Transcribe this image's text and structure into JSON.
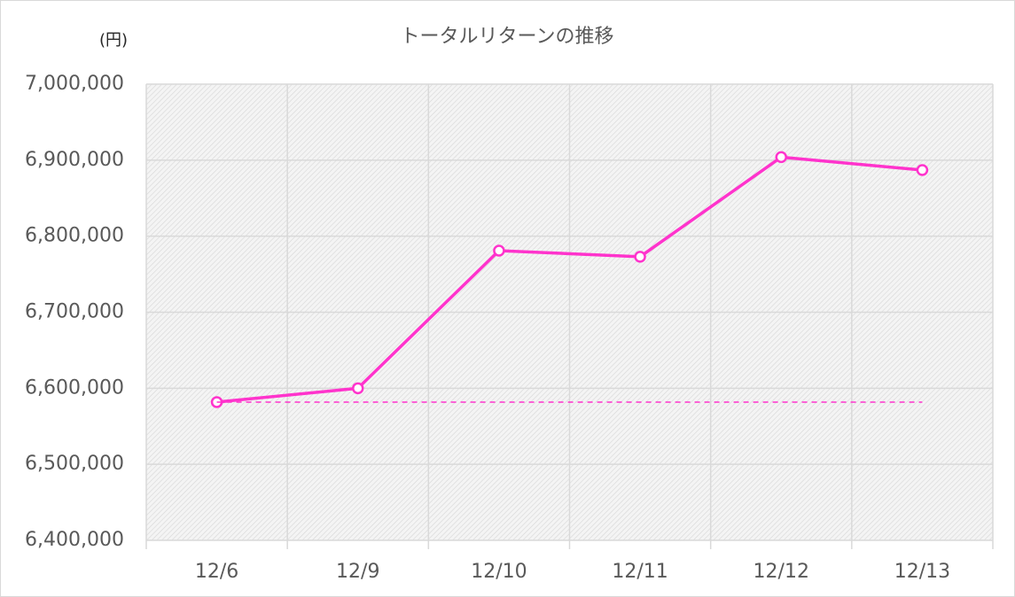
{
  "chart_data": {
    "type": "line",
    "title": "トータルリターンの推移",
    "y_unit_label": "(円)",
    "categories": [
      "12/6",
      "12/9",
      "12/10",
      "12/11",
      "12/12",
      "12/13"
    ],
    "series": [
      {
        "color": "#ff33cc",
        "style": "solid",
        "markers": true,
        "values": [
          6581800,
          6600000,
          6781000,
          6773000,
          6904000,
          6887000
        ]
      },
      {
        "color": "#ff33cc",
        "style": "dashed",
        "markers": false,
        "values": [
          6581800,
          6581800,
          6581800,
          6581800,
          6581800,
          6581800
        ]
      }
    ],
    "ylim": [
      6400000,
      7000000
    ],
    "yticks": [
      {
        "value": 6400000,
        "label": "6,400,000"
      },
      {
        "value": 6500000,
        "label": "6,500,000"
      },
      {
        "value": 6600000,
        "label": "6,600,000"
      },
      {
        "value": 6700000,
        "label": "6,700,000"
      },
      {
        "value": 6800000,
        "label": "6,800,000"
      },
      {
        "value": 6900000,
        "label": "6,900,000"
      },
      {
        "value": 7000000,
        "label": "7,000,000"
      }
    ],
    "grid": true
  }
}
